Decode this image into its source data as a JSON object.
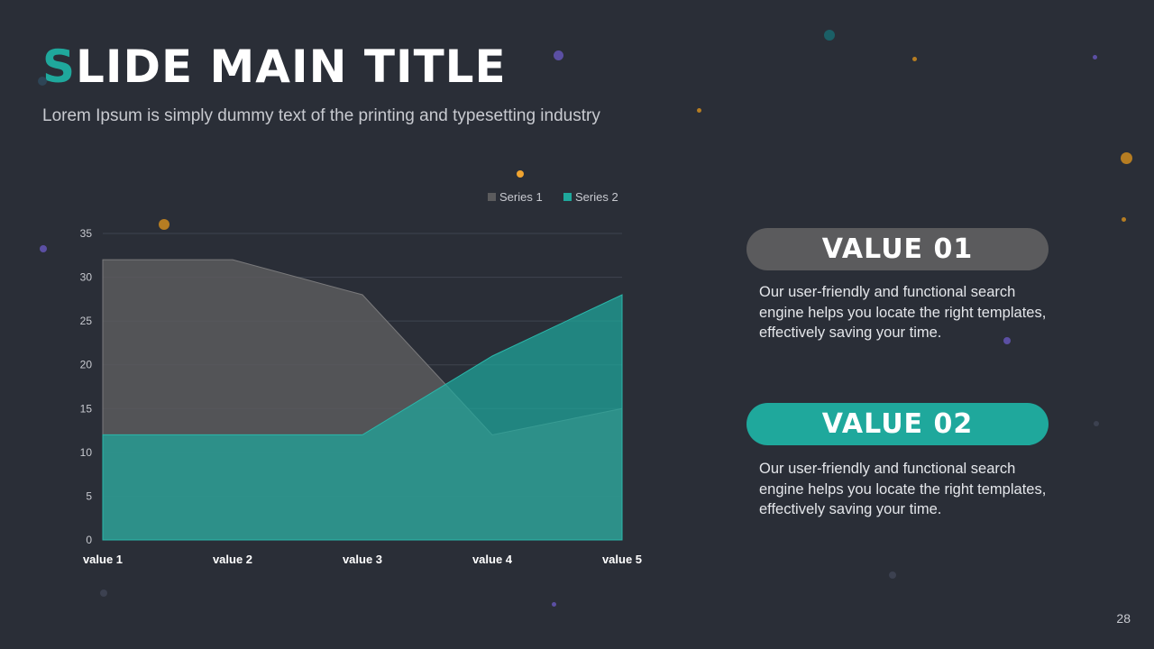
{
  "slide": {
    "title_first_letter": "S",
    "title_rest": "LIDE MAIN TITLE",
    "subtitle": "Lorem Ipsum is simply dummy text of the printing and typesetting industry",
    "page_number": "28"
  },
  "values": [
    {
      "label": "VALUE 01",
      "text": "Our user-friendly and functional search engine helps you locate the right templates, effectively saving your time.",
      "color": "#5b5b5d"
    },
    {
      "label": "VALUE 02",
      "text": "Our user-friendly and functional search engine helps you locate the right templates, effectively saving your time.",
      "color": "#1fa89c"
    }
  ],
  "chart_data": {
    "type": "area",
    "categories": [
      "value 1",
      "value 2",
      "value 3",
      "value 4",
      "value 5"
    ],
    "series": [
      {
        "name": "Series 1",
        "values": [
          32,
          32,
          28,
          12,
          15
        ],
        "color": "#5b5b5d"
      },
      {
        "name": "Series 2",
        "values": [
          12,
          12,
          12,
          21,
          28
        ],
        "color": "#1fa89c"
      }
    ],
    "ylim": [
      0,
      35
    ],
    "yticks": [
      0,
      5,
      10,
      15,
      20,
      25,
      30,
      35
    ],
    "grid": true,
    "legend": "top-right"
  }
}
